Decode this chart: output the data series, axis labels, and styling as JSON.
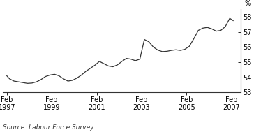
{
  "title": "",
  "ylabel": "%",
  "source_text": "Source: Labour Force Survey.",
  "xlim_start": 1996.9,
  "xlim_end": 2007.5,
  "ylim": [
    53,
    58.5
  ],
  "yticks": [
    53,
    54,
    55,
    56,
    57,
    58
  ],
  "xtick_labels": [
    "Feb\n1997",
    "Feb\n1999",
    "Feb\n2001",
    "Feb\n2003",
    "Feb\n2005",
    "Feb\n2007"
  ],
  "xtick_positions": [
    1997.08,
    1999.08,
    2001.08,
    2003.08,
    2005.08,
    2007.08
  ],
  "line_color": "#333333",
  "line_width": 0.9,
  "background_color": "#ffffff",
  "data_x": [
    1997.08,
    1997.2,
    1997.4,
    1997.6,
    1997.8,
    1998.0,
    1998.2,
    1998.4,
    1998.6,
    1998.8,
    1999.0,
    1999.2,
    1999.4,
    1999.6,
    1999.8,
    2000.0,
    2000.2,
    2000.4,
    2000.6,
    2000.8,
    2001.0,
    2001.2,
    2001.4,
    2001.6,
    2001.8,
    2002.0,
    2002.2,
    2002.4,
    2002.6,
    2002.8,
    2003.0,
    2003.2,
    2003.4,
    2003.6,
    2003.8,
    2004.0,
    2004.2,
    2004.4,
    2004.6,
    2004.8,
    2005.0,
    2005.2,
    2005.4,
    2005.6,
    2005.8,
    2006.0,
    2006.2,
    2006.4,
    2006.6,
    2006.8,
    2007.0,
    2007.15
  ],
  "data_y": [
    54.1,
    53.9,
    53.75,
    53.7,
    53.65,
    53.6,
    53.62,
    53.7,
    53.85,
    54.05,
    54.15,
    54.2,
    54.1,
    53.9,
    53.75,
    53.8,
    53.95,
    54.15,
    54.4,
    54.6,
    54.8,
    55.05,
    54.9,
    54.75,
    54.7,
    54.82,
    55.05,
    55.25,
    55.2,
    55.1,
    55.2,
    56.5,
    56.35,
    56.0,
    55.8,
    55.7,
    55.72,
    55.78,
    55.82,
    55.78,
    55.85,
    56.05,
    56.55,
    57.1,
    57.25,
    57.3,
    57.2,
    57.05,
    57.1,
    57.35,
    57.9,
    57.75
  ]
}
